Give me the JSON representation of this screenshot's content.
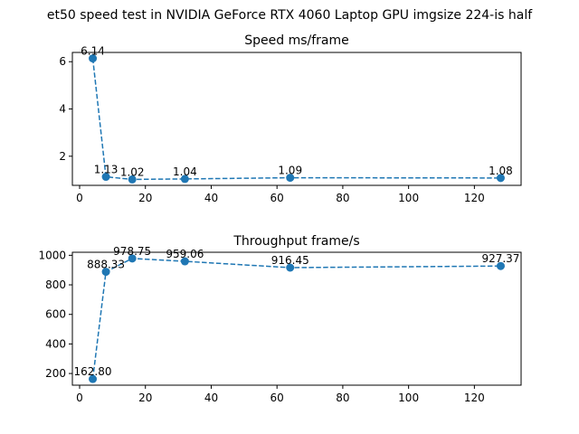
{
  "suptitle": "et50 speed test in NVIDIA GeForce RTX 4060 Laptop GPU imgsize 224-is half",
  "colors": {
    "series": "#1f77b4",
    "axis": "#000000",
    "background": "#ffffff"
  },
  "chart_data": [
    {
      "type": "line",
      "title": "Speed ms/frame",
      "xlabel": "",
      "ylabel": "",
      "x": [
        4,
        8,
        16,
        32,
        64,
        128
      ],
      "values": [
        6.14,
        1.13,
        1.02,
        1.04,
        1.09,
        1.08
      ],
      "data_labels": [
        "6.14",
        "1.13",
        "1.02",
        "1.04",
        "1.09",
        "1.08"
      ],
      "xlim": [
        -2.2,
        134.2
      ],
      "ylim": [
        0.768,
        6.392
      ],
      "xticks": [
        0,
        20,
        40,
        60,
        80,
        100,
        120
      ],
      "xtick_labels": [
        "0",
        "20",
        "40",
        "60",
        "80",
        "100",
        "120"
      ],
      "yticks": [
        2,
        4,
        6
      ],
      "ytick_labels": [
        "2",
        "4",
        "6"
      ],
      "line_style": "dashed",
      "marker": "circle",
      "grid": false,
      "legend": "none"
    },
    {
      "type": "line",
      "title": "Throughput frame/s",
      "xlabel": "",
      "ylabel": "",
      "x": [
        4,
        8,
        16,
        32,
        64,
        128
      ],
      "values": [
        162.8,
        888.33,
        978.75,
        959.06,
        916.45,
        927.37
      ],
      "data_labels": [
        "162.80",
        "888.33",
        "978.75",
        "959.06",
        "916.45",
        "927.37"
      ],
      "xlim": [
        -2.2,
        134.2
      ],
      "ylim": [
        121.0,
        1020.5
      ],
      "xticks": [
        0,
        20,
        40,
        60,
        80,
        100,
        120
      ],
      "xtick_labels": [
        "0",
        "20",
        "40",
        "60",
        "80",
        "100",
        "120"
      ],
      "yticks": [
        200,
        400,
        600,
        800,
        1000
      ],
      "ytick_labels": [
        "200",
        "400",
        "600",
        "800",
        "1000"
      ],
      "line_style": "dashed",
      "marker": "circle",
      "grid": false,
      "legend": "none"
    }
  ]
}
